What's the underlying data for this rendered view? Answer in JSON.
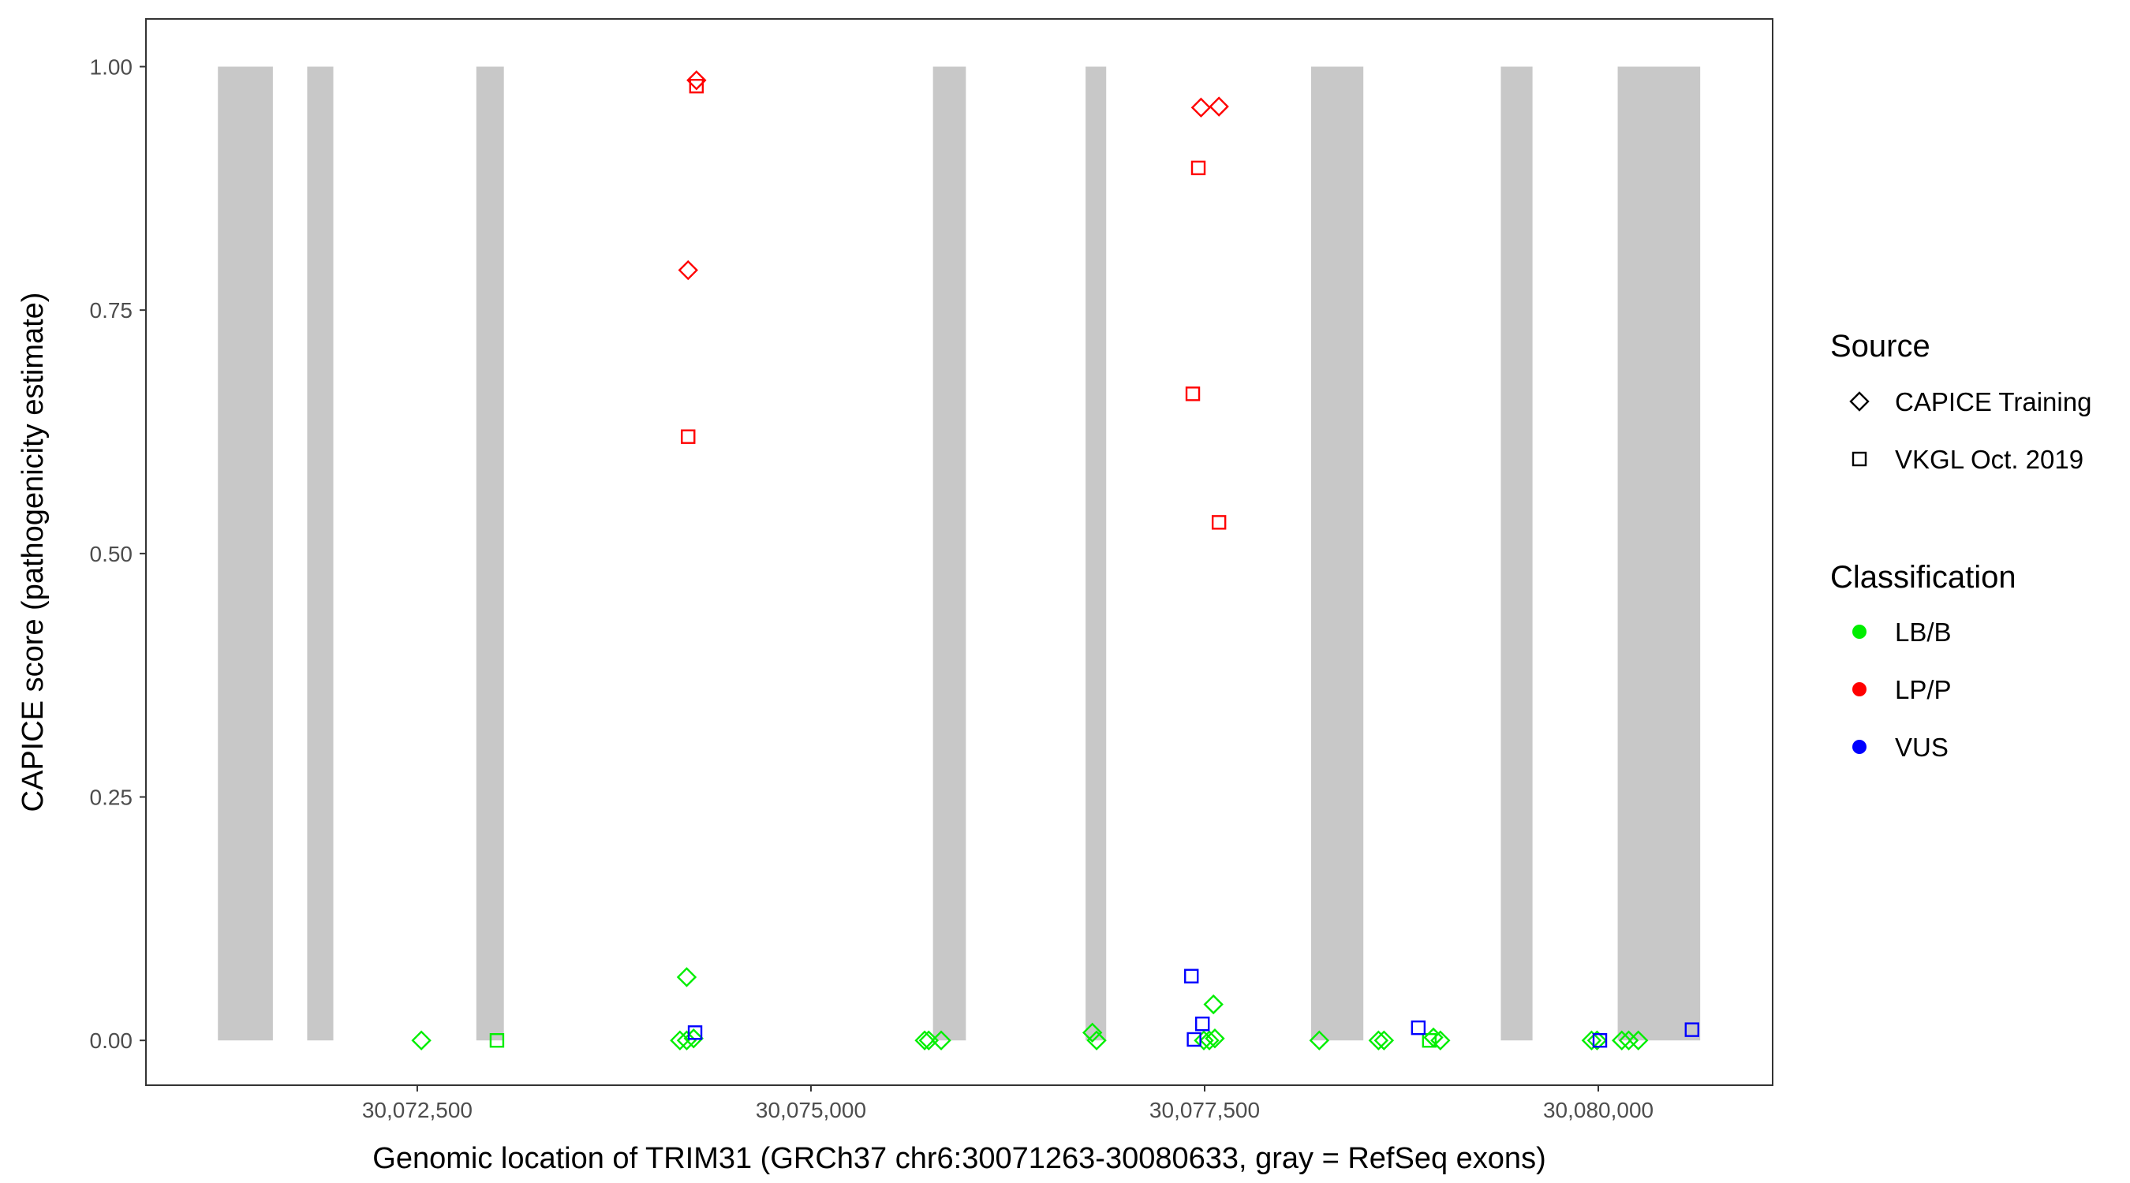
{
  "chart_data": {
    "type": "scatter",
    "xlabel": "Genomic location of TRIM31 (GRCh37 chr6:30071263-30080633, gray = RefSeq exons)",
    "ylabel": "CAPICE score (pathogenicity estimate)",
    "xlim": [
      30070777,
      30081107
    ],
    "ylim": [
      -0.046,
      1.049
    ],
    "x_ticks": [
      30072500,
      30075000,
      30077500,
      30080000
    ],
    "x_tick_labels": [
      "30,072,500",
      "30,075,000",
      "30,077,500",
      "30,080,000"
    ],
    "y_ticks": [
      0,
      0.25,
      0.5,
      0.75,
      1.0
    ],
    "y_tick_labels": [
      "0.00",
      "0.25",
      "0.50",
      "0.75",
      "1.00"
    ],
    "grid": false,
    "exon_color": "#c8c8c8",
    "exons": [
      [
        30071234,
        30071583
      ],
      [
        30071801,
        30071967
      ],
      [
        30072875,
        30073050
      ],
      [
        30075775,
        30075984
      ],
      [
        30076744,
        30076875
      ],
      [
        30078176,
        30078508
      ],
      [
        30079381,
        30079582
      ],
      [
        30080123,
        30080647
      ]
    ],
    "legend": {
      "placement": "right",
      "source_title": "Source",
      "source_items": [
        {
          "label": "CAPICE Training",
          "shape": "diamond"
        },
        {
          "label": "VKGL Oct. 2019",
          "shape": "square"
        }
      ],
      "class_title": "Classification",
      "class_items": [
        {
          "label": "LB/B",
          "color": "#00ee00"
        },
        {
          "label": "LP/P",
          "color": "#ff0000"
        },
        {
          "label": "VUS",
          "color": "#0000ff"
        }
      ]
    },
    "series": [
      {
        "source": "CAPICE Training",
        "classification": "LP/P",
        "points": [
          [
            30074273,
            0.986
          ],
          [
            30074220,
            0.791
          ],
          [
            30077477,
            0.958
          ],
          [
            30077591,
            0.959
          ]
        ]
      },
      {
        "source": "VKGL Oct. 2019",
        "classification": "LP/P",
        "points": [
          [
            30074273,
            0.98
          ],
          [
            30074220,
            0.62
          ],
          [
            30077460,
            0.896
          ],
          [
            30077425,
            0.664
          ],
          [
            30077591,
            0.532
          ]
        ]
      },
      {
        "source": "CAPICE Training",
        "classification": "LB/B",
        "points": [
          [
            30072526,
            0
          ],
          [
            30074211,
            0.065
          ],
          [
            30074168,
            0
          ],
          [
            30074211,
            0
          ],
          [
            30074255,
            0.002
          ],
          [
            30075722,
            0
          ],
          [
            30075748,
            0
          ],
          [
            30075827,
            0
          ],
          [
            30076787,
            0.008
          ],
          [
            30076814,
            0
          ],
          [
            30077556,
            0.037
          ],
          [
            30077495,
            0
          ],
          [
            30077530,
            0
          ],
          [
            30077565,
            0.002
          ],
          [
            30078228,
            0
          ],
          [
            30078604,
            0
          ],
          [
            30078639,
            0
          ],
          [
            30078953,
            0.003
          ],
          [
            30078997,
            0
          ],
          [
            30079957,
            0
          ],
          [
            30079992,
            0
          ],
          [
            30080149,
            0
          ],
          [
            30080193,
            0
          ],
          [
            30080254,
            0
          ]
        ]
      },
      {
        "source": "VKGL Oct. 2019",
        "classification": "LB/B",
        "points": [
          [
            30073006,
            0
          ],
          [
            30078927,
            0
          ]
        ]
      },
      {
        "source": "VKGL Oct. 2019",
        "classification": "VUS",
        "points": [
          [
            30074264,
            0.008
          ],
          [
            30077416,
            0.066
          ],
          [
            30077486,
            0.017
          ],
          [
            30077433,
            0.001
          ],
          [
            30078857,
            0.013
          ],
          [
            30080010,
            0
          ],
          [
            30080595,
            0.011
          ]
        ]
      }
    ]
  }
}
